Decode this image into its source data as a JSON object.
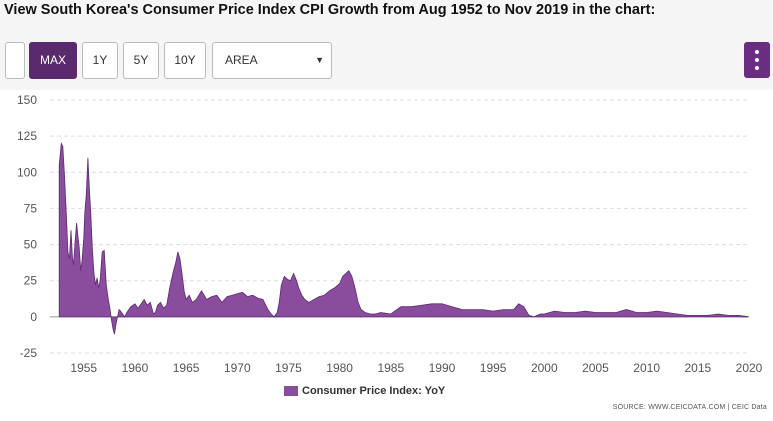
{
  "heading": "View South Korea's Consumer Price Index CPI Growth from Aug 1952 to Nov 2019 in the chart:",
  "toolbar": {
    "buttons": [
      "MAX",
      "1Y",
      "5Y",
      "10Y"
    ],
    "active": "MAX",
    "chart_type": "AREA",
    "dropdown_arrow": "▼"
  },
  "colors": {
    "area_fill": "#8a4d9e",
    "area_stroke": "#5e2a73",
    "active_button": "#5a2a6e",
    "menu_button": "#6a2d82"
  },
  "source": "SOURCE: WWW.CEICDATA.COM | CEIC Data",
  "chart_data": {
    "type": "area",
    "title": "",
    "series": [
      {
        "name": "Consumer Price Index: YoY",
        "x": [
          1952.6,
          1952.8,
          1952.95,
          1953.1,
          1953.3,
          1953.45,
          1953.6,
          1953.75,
          1953.9,
          1954.0,
          1954.15,
          1954.3,
          1954.4,
          1954.55,
          1954.7,
          1954.85,
          1955.0,
          1955.1,
          1955.25,
          1955.4,
          1955.55,
          1955.7,
          1955.85,
          1956.0,
          1956.15,
          1956.3,
          1956.45,
          1956.6,
          1956.8,
          1957.0,
          1957.2,
          1957.4,
          1957.55,
          1957.7,
          1957.85,
          1958.0,
          1958.15,
          1958.3,
          1958.45,
          1958.6,
          1958.8,
          1959.0,
          1959.2,
          1959.4,
          1959.6,
          1959.8,
          1960.0,
          1960.3,
          1960.6,
          1960.9,
          1961.2,
          1961.5,
          1961.8,
          1962.0,
          1962.2,
          1962.5,
          1962.8,
          1963.1,
          1963.4,
          1963.7,
          1964.0,
          1964.2,
          1964.4,
          1964.6,
          1964.8,
          1965.0,
          1965.3,
          1965.6,
          1966.0,
          1966.5,
          1967.0,
          1967.5,
          1968.0,
          1968.5,
          1969.0,
          1969.5,
          1970.0,
          1970.5,
          1971.0,
          1971.5,
          1972.0,
          1972.5,
          1973.0,
          1973.3,
          1973.6,
          1973.9,
          1974.1,
          1974.3,
          1974.6,
          1974.9,
          1975.2,
          1975.5,
          1975.8,
          1976.0,
          1976.3,
          1976.6,
          1977.0,
          1977.5,
          1978.0,
          1978.5,
          1979.0,
          1979.5,
          1980.0,
          1980.3,
          1980.6,
          1980.9,
          1981.2,
          1981.5,
          1981.8,
          1982.1,
          1982.5,
          1983.0,
          1983.5,
          1984.0,
          1985.0,
          1986.0,
          1987.0,
          1988.0,
          1989.0,
          1990.0,
          1991.0,
          1992.0,
          1993.0,
          1994.0,
          1995.0,
          1996.0,
          1997.0,
          1997.5,
          1998.0,
          1998.5,
          1999.0,
          1999.3,
          1999.6,
          2000.0,
          2001.0,
          2002.0,
          2003.0,
          2004.0,
          2005.0,
          2006.0,
          2007.0,
          2008.0,
          2008.6,
          2009.0,
          2010.0,
          2011.0,
          2012.0,
          2013.0,
          2014.0,
          2015.0,
          2016.0,
          2017.0,
          2018.0,
          2019.0,
          2019.5,
          2019.9
        ],
        "values": [
          105,
          120,
          118,
          100,
          70,
          45,
          40,
          60,
          40,
          36,
          52,
          65,
          58,
          48,
          32,
          40,
          55,
          72,
          85,
          110,
          88,
          70,
          45,
          30,
          22,
          27,
          20,
          25,
          45,
          46,
          22,
          12,
          6,
          -2,
          -8,
          -12,
          -5,
          0,
          5,
          4,
          2,
          0,
          3,
          5,
          7,
          8,
          9,
          6,
          9,
          12,
          8,
          10,
          2,
          3,
          8,
          10,
          6,
          8,
          20,
          30,
          38,
          45,
          40,
          30,
          18,
          12,
          15,
          10,
          12,
          18,
          12,
          14,
          15,
          10,
          14,
          15,
          16,
          17,
          14,
          15,
          13,
          12,
          5,
          2,
          0,
          3,
          10,
          22,
          28,
          26,
          25,
          30,
          25,
          20,
          15,
          12,
          10,
          12,
          14,
          15,
          18,
          20,
          23,
          28,
          30,
          32,
          28,
          20,
          10,
          5,
          3,
          2,
          2,
          3,
          2,
          7,
          7,
          8,
          9,
          9,
          7,
          5,
          5,
          5,
          4,
          5,
          5,
          9,
          7,
          1,
          0,
          1,
          2,
          2,
          4,
          3,
          3,
          4,
          3,
          3,
          3,
          5,
          4,
          3,
          3,
          4,
          3,
          2,
          1,
          1,
          1,
          2,
          1,
          1,
          0.5,
          0.2
        ]
      }
    ],
    "xlabel": "",
    "ylabel": "",
    "xlim": [
      1951.7,
      2020.0
    ],
    "ylim": [
      -25,
      150
    ],
    "x_ticks": [
      1955,
      1960,
      1965,
      1970,
      1975,
      1980,
      1985,
      1990,
      1995,
      2000,
      2005,
      2010,
      2015,
      2020
    ],
    "y_ticks": [
      -25,
      0,
      25,
      50,
      75,
      100,
      125,
      150
    ],
    "grid": true,
    "legend": "bottom-center"
  }
}
